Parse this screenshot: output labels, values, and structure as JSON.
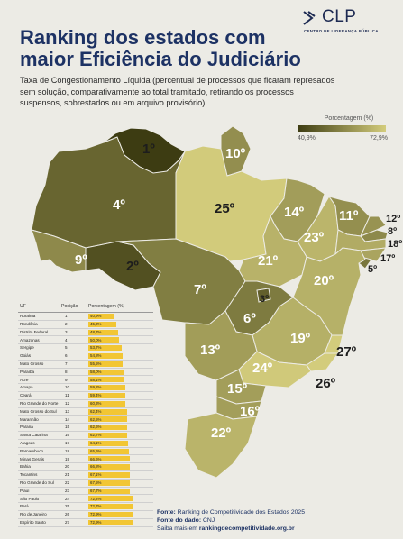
{
  "logo": {
    "text": "CLP",
    "subtitle": "CENTRO DE LIDERANÇA PÚBLICA"
  },
  "title": "Ranking dos estados com maior Eficiência do Judiciário",
  "subtitle": "Taxa de Congestionamento Líquida (percentual de processos que ficaram represados sem solução, comparativamente ao total tramitado, retirando os processos suspensos, sobrestados ou em arquivo provisório)",
  "legend": {
    "title": "Porcentagem (%)",
    "min": "40,9%",
    "max": "72,9%",
    "color_min": "#3d3c12",
    "color_max": "#d3cc7c"
  },
  "footer": {
    "fonte_label": "Fonte:",
    "fonte": "Ranking de Competitividade dos Estados 2025",
    "dado_label": "Fonte do dado:",
    "dado": "CNJ",
    "saiba_label": "Saiba mais em",
    "saiba": "rankingdecompetitividade.org.br"
  },
  "chart_data": {
    "type": "table",
    "columns": [
      "UF",
      "Posição",
      "Porcentagem (%)"
    ],
    "rows": [
      {
        "uf": "Roraima",
        "pos": 1,
        "value": 40.9,
        "label": "40,9%"
      },
      {
        "uf": "Rondônia",
        "pos": 2,
        "value": 45.3,
        "label": "45,3%"
      },
      {
        "uf": "Distrito Federal",
        "pos": 3,
        "value": 48.7,
        "label": "48,7%"
      },
      {
        "uf": "Amazonas",
        "pos": 4,
        "value": 50.0,
        "label": "50,0%"
      },
      {
        "uf": "Sergipe",
        "pos": 5,
        "value": 53.7,
        "label": "53,7%"
      },
      {
        "uf": "Goiás",
        "pos": 6,
        "value": 54.8,
        "label": "54,8%"
      },
      {
        "uf": "Mato Grosso",
        "pos": 7,
        "value": 55.5,
        "label": "55,5%"
      },
      {
        "uf": "Paraíba",
        "pos": 8,
        "value": 58.0,
        "label": "58,0%"
      },
      {
        "uf": "Acre",
        "pos": 9,
        "value": 58.1,
        "label": "58,1%"
      },
      {
        "uf": "Amapá",
        "pos": 10,
        "value": 59.2,
        "label": "59,2%"
      },
      {
        "uf": "Ceará",
        "pos": 11,
        "value": 59.4,
        "label": "59,4%"
      },
      {
        "uf": "Rio Grande do Norte",
        "pos": 12,
        "value": 60.3,
        "label": "60,3%"
      },
      {
        "uf": "Mato Grosso do Sul",
        "pos": 13,
        "value": 62.4,
        "label": "62,4%"
      },
      {
        "uf": "Maranhão",
        "pos": 14,
        "value": 62.5,
        "label": "62,5%"
      },
      {
        "uf": "Paraná",
        "pos": 15,
        "value": 62.6,
        "label": "62,6%"
      },
      {
        "uf": "Santa Catarina",
        "pos": 16,
        "value": 62.7,
        "label": "62,7%"
      },
      {
        "uf": "Alagoas",
        "pos": 17,
        "value": 64.1,
        "label": "64,1%"
      },
      {
        "uf": "Pernambuco",
        "pos": 18,
        "value": 65.6,
        "label": "65,6%"
      },
      {
        "uf": "Minas Gerais",
        "pos": 19,
        "value": 66.6,
        "label": "66,6%"
      },
      {
        "uf": "Bahia",
        "pos": 20,
        "value": 66.8,
        "label": "66,8%"
      },
      {
        "uf": "Tocantins",
        "pos": 21,
        "value": 67.1,
        "label": "67,1%"
      },
      {
        "uf": "Rio Grande do Sul",
        "pos": 22,
        "value": 67.5,
        "label": "67,5%"
      },
      {
        "uf": "Piauí",
        "pos": 23,
        "value": 67.7,
        "label": "67,7%"
      },
      {
        "uf": "São Paulo",
        "pos": 24,
        "value": 72.2,
        "label": "72,2%"
      },
      {
        "uf": "Pará",
        "pos": 25,
        "value": 72.7,
        "label": "72,7%"
      },
      {
        "uf": "Rio de Janeiro",
        "pos": 26,
        "value": 72.9,
        "label": "72,9%"
      },
      {
        "uf": "Espírito Santo",
        "pos": 27,
        "value": 72.9,
        "label": "72,9%"
      }
    ],
    "map_ranks": {
      "RR": "1º",
      "RO": "2º",
      "DF": "3º",
      "AM": "4º",
      "SE": "5º",
      "GO": "6º",
      "MT": "7º",
      "PB": "8º",
      "AC": "9º",
      "AP": "10º",
      "CE": "11º",
      "RN": "12º",
      "MS": "13º",
      "MA": "14º",
      "PR": "15º",
      "SC": "16º",
      "AL": "17º",
      "PE": "18º",
      "MG": "19º",
      "BA": "20º",
      "TO": "21º",
      "RS": "22º",
      "PI": "23º",
      "SP": "24º",
      "PA": "25º",
      "RJ": "26º",
      "ES": "27º"
    }
  }
}
